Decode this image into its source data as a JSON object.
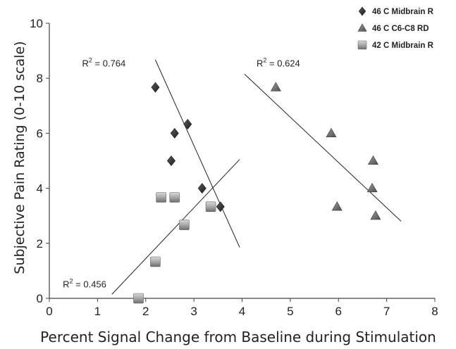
{
  "chart_data": {
    "type": "scatter",
    "xlabel": "Percent Signal Change from Baseline during Stimulation",
    "ylabel": "Subjective Pain Rating  (0-10 scale)",
    "xlim": [
      0,
      8
    ],
    "ylim": [
      0,
      10
    ],
    "x_ticks": [
      0,
      1,
      2,
      3,
      4,
      5,
      6,
      7,
      8
    ],
    "y_ticks": [
      0,
      2,
      4,
      6,
      8,
      10
    ],
    "legend_position": "top-right",
    "series": [
      {
        "name": "46 C  Midbrain R",
        "marker": "diamond",
        "color": "#2b2b2b",
        "points": [
          [
            2.2,
            7.67
          ],
          [
            2.6,
            6.0
          ],
          [
            2.87,
            6.33
          ],
          [
            2.53,
            5.0
          ],
          [
            3.17,
            4.0
          ],
          [
            3.55,
            3.33
          ]
        ],
        "trendline": {
          "x": [
            2.2,
            3.95
          ],
          "y": [
            8.67,
            1.85
          ]
        },
        "r2_label": "R",
        "r2_sup": "2",
        "r2_value": " = 0.764",
        "r2_pos": [
          0.68,
          8.43
        ]
      },
      {
        "name": "46 C  C6-C8 RD",
        "marker": "triangle",
        "color": "#555555",
        "points": [
          [
            4.7,
            7.67
          ],
          [
            5.85,
            6.0
          ],
          [
            6.72,
            5.0
          ],
          [
            6.7,
            4.0
          ],
          [
            5.97,
            3.33
          ],
          [
            6.77,
            3.0
          ]
        ],
        "trendline": {
          "x": [
            4.05,
            7.3
          ],
          "y": [
            8.15,
            2.8
          ]
        },
        "r2_label": "R",
        "r2_sup": "2",
        "r2_value": " = 0.624",
        "r2_pos": [
          4.3,
          8.43
        ]
      },
      {
        "name": "42 C Midbrain R",
        "marker": "square",
        "color": "#8a8a8a",
        "points": [
          [
            2.32,
            3.67
          ],
          [
            2.6,
            3.67
          ],
          [
            3.35,
            3.33
          ],
          [
            2.8,
            2.67
          ],
          [
            2.2,
            1.33
          ],
          [
            1.85,
            0.0
          ]
        ],
        "trendline": {
          "x": [
            1.3,
            3.95
          ],
          "y": [
            0.15,
            5.05
          ]
        },
        "r2_label": "R",
        "r2_sup": "2",
        "r2_value": " = 0.456",
        "r2_pos": [
          0.28,
          0.4
        ]
      }
    ]
  }
}
